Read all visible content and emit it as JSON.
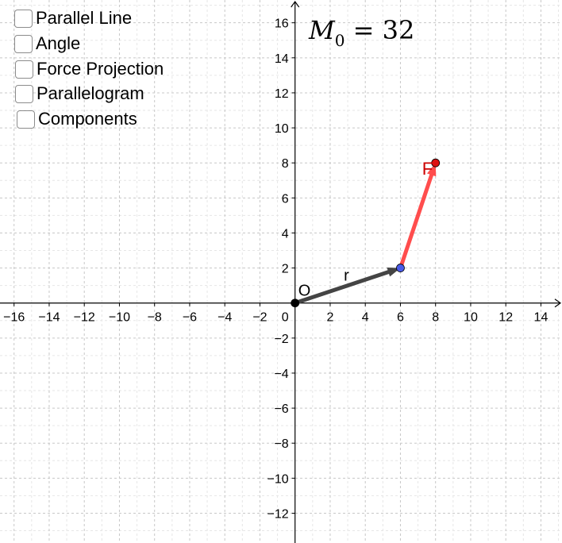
{
  "checkboxes": [
    {
      "label": "Parallel Line",
      "checked": false
    },
    {
      "label": "Angle",
      "checked": false
    },
    {
      "label": "Force Projection",
      "checked": false
    },
    {
      "label": "Parallelogram",
      "checked": false
    },
    {
      "label": "Components",
      "checked": false
    }
  ],
  "moment": {
    "symbol": "M",
    "subscript": "0",
    "operator": "=",
    "value": "32"
  },
  "axes": {
    "x_range": [
      -16.8,
      15.2
    ],
    "y_range": [
      -13.7,
      17.3
    ],
    "x_ticks": [
      -16,
      -14,
      -12,
      -10,
      -8,
      -6,
      -4,
      -2,
      2,
      4,
      6,
      8,
      10,
      12,
      14
    ],
    "y_ticks": [
      -12,
      -10,
      -8,
      -6,
      -4,
      -2,
      2,
      4,
      6,
      8,
      10,
      12,
      14,
      16
    ],
    "origin_label": "0",
    "grid": true,
    "minor_grid_step": 1
  },
  "points": [
    {
      "name": "origin",
      "label": "O",
      "x": 0,
      "y": 0,
      "color": "#000000"
    },
    {
      "name": "r-tip",
      "label": "",
      "x": 6,
      "y": 2,
      "color": "#4a5be8"
    },
    {
      "name": "F-tip",
      "label": "F",
      "x": 8,
      "y": 8,
      "color": "#dd1111"
    }
  ],
  "vectors": [
    {
      "name": "r",
      "label": "r",
      "from": [
        0,
        0
      ],
      "to": [
        6,
        2
      ],
      "color": "#444444"
    },
    {
      "name": "F",
      "label": "F",
      "from": [
        6,
        2
      ],
      "to": [
        8,
        8
      ],
      "color": "#ff4d4d"
    }
  ],
  "colors": {
    "grid_major": "#c8c8c8",
    "grid_minor": "#e6e6e6",
    "axis": "#000000",
    "label_F": "#cc0000"
  }
}
